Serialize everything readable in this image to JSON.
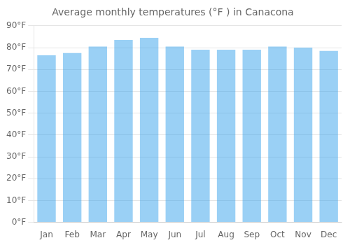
{
  "chart_data": {
    "type": "bar",
    "title": "Average monthly temperatures (°F ) in Canacona",
    "categories": [
      "Jan",
      "Feb",
      "Mar",
      "Apr",
      "May",
      "Jun",
      "Jul",
      "Aug",
      "Sep",
      "Oct",
      "Nov",
      "Dec"
    ],
    "values": [
      76.5,
      77.5,
      80.5,
      83.5,
      84.5,
      80.5,
      79.0,
      79.0,
      79.0,
      80.5,
      80.0,
      78.5
    ],
    "ylim": [
      0,
      90
    ],
    "yticks": [
      {
        "value": 0,
        "label": "0°F"
      },
      {
        "value": 10,
        "label": "10°F"
      },
      {
        "value": 20,
        "label": "20°F"
      },
      {
        "value": 30,
        "label": "30°F"
      },
      {
        "value": 40,
        "label": "40°F"
      },
      {
        "value": 50,
        "label": "50°F"
      },
      {
        "value": 60,
        "label": "60°F"
      },
      {
        "value": 70,
        "label": "70°F"
      },
      {
        "value": 80,
        "label": "80°F"
      },
      {
        "value": 90,
        "label": "90°F"
      }
    ],
    "grid": true
  }
}
